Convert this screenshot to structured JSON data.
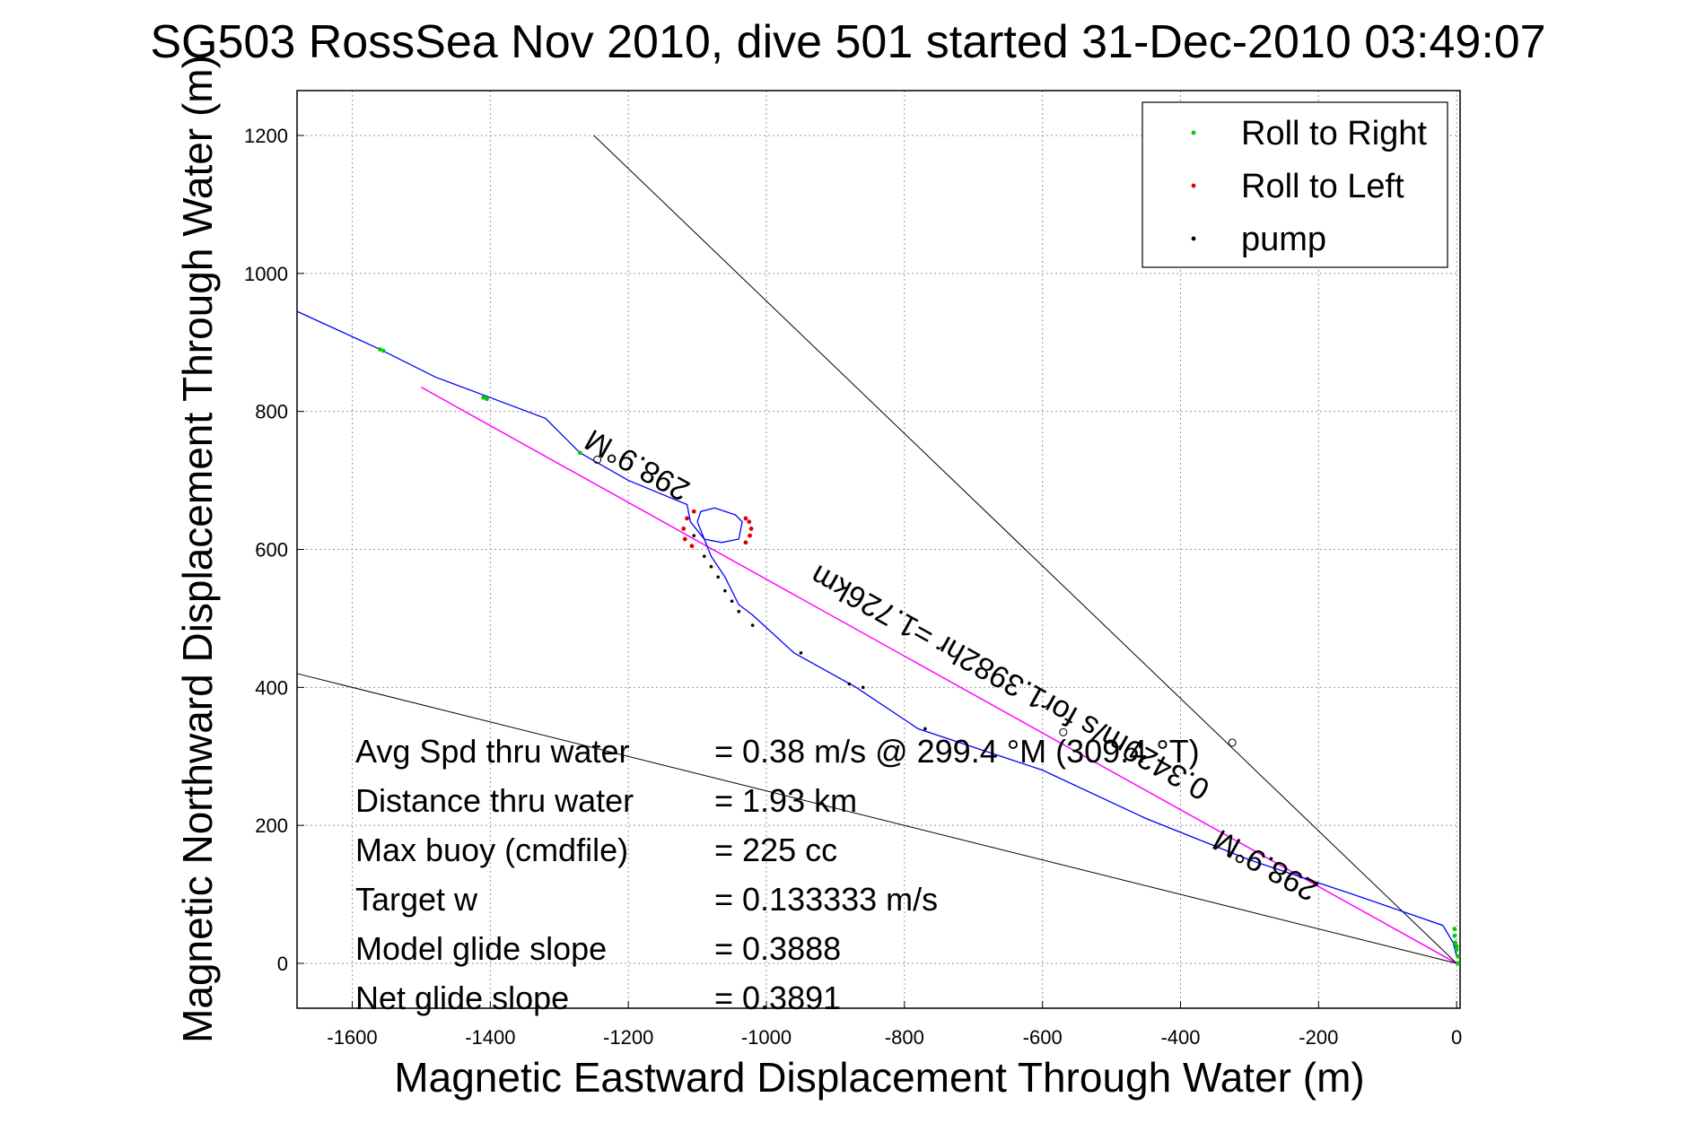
{
  "chart_data": {
    "type": "line",
    "title": "SG503 RossSea Nov 2010, dive 501 started 31-Dec-2010 03:49:07",
    "xlabel": "Magnetic Eastward Displacement Through Water (m)",
    "ylabel": "Magnetic Northward Displacement Through Water (m)",
    "xlim": [
      -1680,
      5
    ],
    "ylim": [
      -65,
      1265
    ],
    "xticks": [
      -1600,
      -1400,
      -1200,
      -1000,
      -800,
      -600,
      -400,
      -200,
      0
    ],
    "yticks": [
      0,
      200,
      400,
      600,
      800,
      1000,
      1200
    ],
    "grid": true,
    "legend": {
      "placement": "top-right",
      "entries": [
        {
          "label": "Roll to Right",
          "color": "#00cc00"
        },
        {
          "label": "Roll to Left",
          "color": "#dd0000"
        },
        {
          "label": "pump",
          "color": "#000000"
        }
      ]
    },
    "track": {
      "color": "#0000ff",
      "x": [
        0,
        -5,
        -20,
        -150,
        -300,
        -450,
        -600,
        -780,
        -870,
        -960,
        -1020,
        -1040,
        -1060,
        -1080,
        -1090,
        -1100,
        -1095,
        -1075,
        -1045,
        -1035,
        -1040,
        -1065,
        -1090,
        -1110,
        -1115,
        -1200,
        -1270,
        -1320,
        -1400,
        -1480,
        -1560,
        -1680
      ],
      "y": [
        10,
        30,
        55,
        100,
        150,
        210,
        280,
        340,
        400,
        450,
        505,
        520,
        560,
        590,
        615,
        640,
        655,
        660,
        650,
        640,
        615,
        610,
        615,
        640,
        665,
        700,
        740,
        790,
        820,
        850,
        890,
        945
      ]
    },
    "roll_right": {
      "x": [
        -3,
        -2,
        0,
        2,
        2,
        0,
        -3,
        -1560,
        -1555,
        -1410,
        -1405,
        -1270
      ],
      "y": [
        40,
        30,
        20,
        10,
        0,
        25,
        50,
        890,
        888,
        820,
        818,
        740
      ]
    },
    "roll_left": {
      "x": [
        -1105,
        -1115,
        -1120,
        -1118,
        -1108,
        -1030,
        -1025,
        -1022,
        -1024,
        -1030
      ],
      "y": [
        655,
        645,
        630,
        615,
        605,
        645,
        640,
        630,
        620,
        610
      ]
    },
    "pump": {
      "x": [
        -1105,
        -1090,
        -1080,
        -1070,
        -1060,
        -1050,
        -1040,
        -1020,
        -950,
        -880,
        -860,
        -770
      ],
      "y": [
        620,
        590,
        575,
        560,
        540,
        525,
        510,
        490,
        450,
        405,
        400,
        340
      ]
    },
    "lines": [
      {
        "label": "298.9°M",
        "color": "#ff00ff",
        "x": [
          0,
          -1500
        ],
        "y": [
          0,
          835
        ]
      },
      {
        "label": "0.3429m/s for1.3982hr =1.726km",
        "color": "#ff00ff",
        "x": [
          0,
          -1500
        ],
        "y": [
          0,
          835
        ]
      },
      {
        "color": "#000000",
        "x": [
          0,
          -1250
        ],
        "y": [
          0,
          1200
        ]
      },
      {
        "color": "#000000",
        "x": [
          0,
          -1680
        ],
        "y": [
          0,
          420
        ]
      }
    ],
    "annotations": [
      {
        "text": "298.9°M",
        "x": -1180,
        "y": 735,
        "angle": 29.1
      },
      {
        "text": "0.3429m/s for1.3982hr =1.726km",
        "x": -640,
        "y": 420,
        "angle": 29.1
      },
      {
        "text": "298.9°M",
        "x": -270,
        "y": 155,
        "angle": 29.1
      }
    ],
    "markers": [
      {
        "x": -1245,
        "y": 730
      },
      {
        "x": -570,
        "y": 335
      },
      {
        "x": -325,
        "y": 320
      }
    ],
    "stats": [
      {
        "label": "Avg Spd thru water",
        "value": "=  0.38 m/s @ 299.4 °M (309.4 °T)"
      },
      {
        "label": "Distance thru water",
        "value": "=  1.93 km"
      },
      {
        "label": "Max buoy (cmdfile)",
        "value": "= 225 cc"
      },
      {
        "label": "Target w",
        "value": "= 0.133333 m/s"
      },
      {
        "label": "Model glide slope",
        "value": "= 0.3888"
      },
      {
        "label": "Net glide slope",
        "value": "= 0.3891"
      }
    ]
  }
}
